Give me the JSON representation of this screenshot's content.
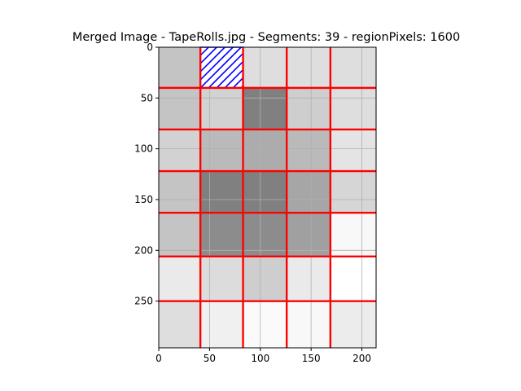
{
  "chart_data": {
    "type": "heatmap",
    "title": "Merged Image - TapeRolls.jpg - Segments: 39 - regionPixels: 1600",
    "xlabel": "",
    "ylabel": "",
    "xlim": [
      0,
      214
    ],
    "ylim": [
      296,
      0
    ],
    "x_ticks": [
      0,
      50,
      100,
      150,
      200
    ],
    "y_ticks": [
      0,
      50,
      100,
      150,
      200,
      250
    ],
    "grid": true,
    "column_edges": [
      0,
      41,
      83,
      126,
      169,
      214
    ],
    "row_edges": [
      0,
      40,
      81,
      122,
      163,
      206,
      250,
      296
    ],
    "gray_levels": [
      [
        196,
        220,
        222,
        222,
        222
      ],
      [
        196,
        210,
        128,
        206,
        222
      ],
      [
        210,
        186,
        172,
        186,
        228
      ],
      [
        196,
        128,
        128,
        166,
        214
      ],
      [
        196,
        140,
        140,
        160,
        248
      ],
      [
        234,
        220,
        206,
        234,
        255
      ],
      [
        222,
        240,
        250,
        248,
        236
      ]
    ],
    "segment_colors": {
      "boundary": "#ff0000",
      "selected_hatch": "#0000ff",
      "grid": "#b0b0b0"
    },
    "selected_region": {
      "x": [
        41,
        83
      ],
      "y": [
        0,
        40
      ]
    }
  }
}
